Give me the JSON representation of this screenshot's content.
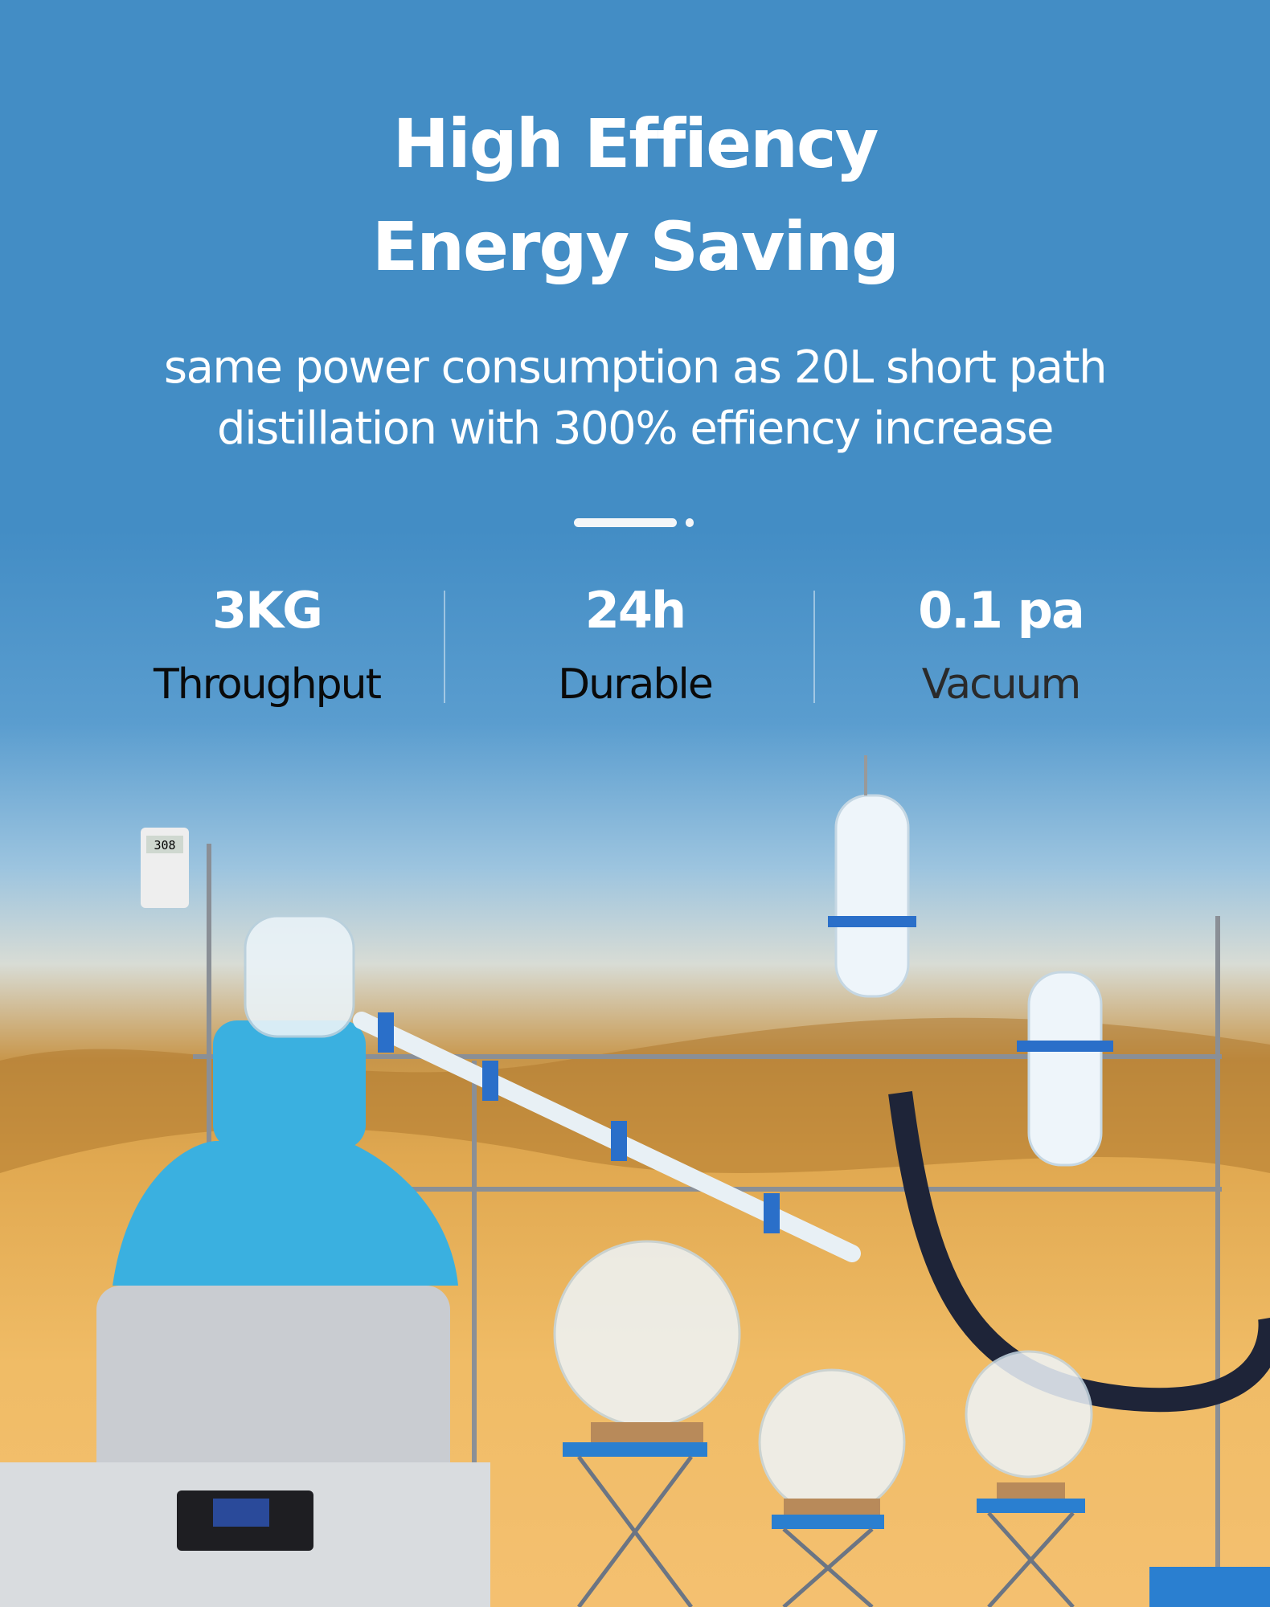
{
  "headline": {
    "line1": "High Effiency",
    "line2": "Energy Saving"
  },
  "subtitle": {
    "line1": "same power consumption as 20L short path",
    "line2": "distillation with 300% effiency increase"
  },
  "stats": [
    {
      "value": "3KG",
      "label": "Throughput"
    },
    {
      "value": "24h",
      "label": "Durable"
    },
    {
      "value": "0.1 pa",
      "label": "Vacuum"
    }
  ],
  "equipment": {
    "temp_display": "308"
  },
  "colors": {
    "background": "#438dc5",
    "jacket": "#3ab0e0",
    "accent_blue": "#2a6fc9",
    "oil_gold": "#e0a850"
  }
}
